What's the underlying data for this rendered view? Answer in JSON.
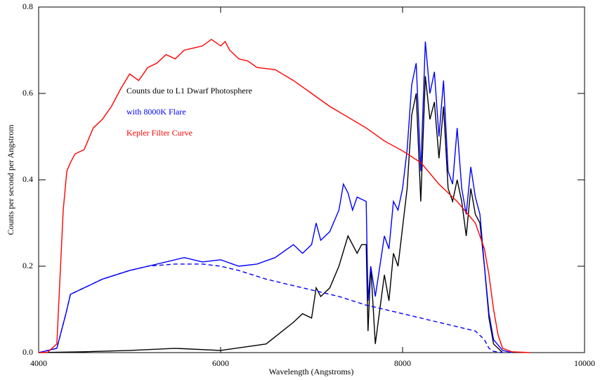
{
  "chart_data": {
    "type": "line",
    "xlabel": "Wavelength (Angstroms)",
    "ylabel": "Counts per second per Angstrom",
    "xlim": [
      4000,
      10000
    ],
    "xticks": [
      4000,
      6000,
      8000,
      10000
    ],
    "ylim": [
      0,
      0.8
    ],
    "yticks": [
      {
        "value": 0,
        "label": "0.0"
      },
      0.2,
      0.4,
      0.6,
      0.8
    ],
    "series": [
      {
        "name": "Counts due to L1 Dwarf Photosphere",
        "color": "#000000",
        "dashed": false,
        "x": [
          4000,
          4500,
          5000,
          5500,
          6000,
          6500,
          6800,
          6900,
          7000,
          7050,
          7100,
          7200,
          7300,
          7400,
          7500,
          7550,
          7600,
          7620,
          7650,
          7700,
          7750,
          7800,
          7850,
          7900,
          7950,
          8000,
          8050,
          8100,
          8150,
          8200,
          8250,
          8300,
          8350,
          8400,
          8450,
          8500,
          8550,
          8600,
          8650,
          8700,
          8750,
          8800,
          8850,
          8900,
          8950,
          9000,
          9100
        ],
        "values": [
          0,
          0.002,
          0.005,
          0.01,
          0.005,
          0.02,
          0.07,
          0.09,
          0.08,
          0.15,
          0.13,
          0.15,
          0.2,
          0.27,
          0.23,
          0.25,
          0.25,
          0.05,
          0.2,
          0.02,
          0.1,
          0.18,
          0.12,
          0.23,
          0.2,
          0.29,
          0.38,
          0.55,
          0.6,
          0.35,
          0.64,
          0.54,
          0.58,
          0.45,
          0.57,
          0.38,
          0.35,
          0.4,
          0.35,
          0.27,
          0.38,
          0.32,
          0.3,
          0.2,
          0.08,
          0.02,
          0
        ]
      },
      {
        "name": "with 8000K Flare",
        "color": "#0000ff",
        "dashed": false,
        "x": [
          4000,
          4200,
          4300,
          4350,
          4500,
          4700,
          5000,
          5200,
          5400,
          5600,
          5800,
          6000,
          6200,
          6400,
          6600,
          6800,
          6900,
          7000,
          7050,
          7100,
          7200,
          7300,
          7350,
          7400,
          7450,
          7500,
          7600,
          7620,
          7650,
          7700,
          7800,
          7850,
          7900,
          7950,
          8000,
          8050,
          8100,
          8150,
          8200,
          8250,
          8300,
          8350,
          8400,
          8450,
          8500,
          8550,
          8600,
          8650,
          8700,
          8750,
          8800,
          8850,
          8900,
          8950,
          9000,
          9100,
          9200
        ],
        "values": [
          0,
          0.01,
          0.09,
          0.135,
          0.15,
          0.17,
          0.19,
          0.2,
          0.21,
          0.22,
          0.21,
          0.215,
          0.2,
          0.205,
          0.22,
          0.25,
          0.23,
          0.25,
          0.3,
          0.26,
          0.28,
          0.33,
          0.39,
          0.37,
          0.33,
          0.36,
          0.35,
          0.12,
          0.2,
          0.13,
          0.27,
          0.24,
          0.35,
          0.33,
          0.38,
          0.47,
          0.62,
          0.67,
          0.42,
          0.72,
          0.6,
          0.65,
          0.5,
          0.63,
          0.42,
          0.39,
          0.52,
          0.38,
          0.32,
          0.43,
          0.36,
          0.32,
          0.2,
          0.09,
          0.03,
          0.005,
          0
        ]
      },
      {
        "color": "#0000ff",
        "dashed": true,
        "x": [
          4000,
          4200,
          4300,
          4350,
          4500,
          4700,
          5000,
          5200,
          5500,
          5800,
          6000,
          6200,
          6500,
          6800,
          7000,
          7300,
          7600,
          8000,
          8300,
          8600,
          8800,
          8900,
          8950,
          9000,
          9100
        ],
        "values": [
          0,
          0.01,
          0.09,
          0.135,
          0.15,
          0.17,
          0.19,
          0.2,
          0.205,
          0.205,
          0.2,
          0.19,
          0.17,
          0.155,
          0.145,
          0.13,
          0.11,
          0.09,
          0.075,
          0.06,
          0.05,
          0.03,
          0.01,
          0.003,
          0
        ]
      },
      {
        "name": "Kepler Filter Curve",
        "color": "#ff0000",
        "dashed": false,
        "x": [
          4000,
          4100,
          4200,
          4270,
          4310,
          4350,
          4400,
          4500,
          4600,
          4700,
          4800,
          4900,
          5000,
          5100,
          5200,
          5300,
          5400,
          5500,
          5600,
          5700,
          5800,
          5900,
          6000,
          6050,
          6100,
          6200,
          6300,
          6400,
          6600,
          6800,
          7000,
          7200,
          7400,
          7600,
          7800,
          8000,
          8200,
          8400,
          8600,
          8800,
          8900,
          8950,
          9000,
          9050,
          9100,
          9200,
          9400
        ],
        "values": [
          0,
          0.001,
          0.02,
          0.33,
          0.42,
          0.44,
          0.46,
          0.47,
          0.52,
          0.54,
          0.57,
          0.61,
          0.645,
          0.63,
          0.66,
          0.67,
          0.69,
          0.68,
          0.7,
          0.705,
          0.71,
          0.725,
          0.71,
          0.72,
          0.7,
          0.68,
          0.675,
          0.66,
          0.655,
          0.63,
          0.6,
          0.57,
          0.545,
          0.52,
          0.49,
          0.467,
          0.44,
          0.39,
          0.35,
          0.3,
          0.24,
          0.18,
          0.1,
          0.04,
          0.01,
          0.002,
          0
        ]
      }
    ]
  }
}
